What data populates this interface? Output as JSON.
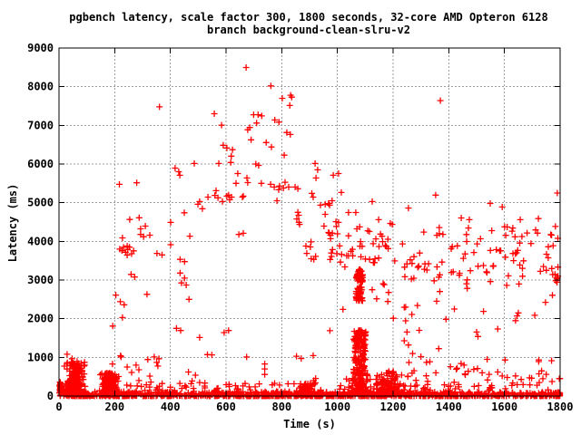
{
  "chart_data": {
    "type": "scatter",
    "title": "pgbench latency, scale factor 300, 1800 seconds, 32-core AMD Opteron 6128",
    "subtitle": "branch background-clean-slru-v2",
    "xlabel": "Time (s)",
    "ylabel": "Latency (ms)",
    "xlim": [
      0,
      1800
    ],
    "ylim": [
      0,
      9000
    ],
    "xticks": [
      0,
      200,
      400,
      600,
      800,
      1000,
      1200,
      1400,
      1600,
      1800
    ],
    "yticks": [
      0,
      1000,
      2000,
      3000,
      4000,
      5000,
      6000,
      7000,
      8000,
      9000
    ],
    "xtick_labels": [
      "0",
      "200",
      "400",
      "600",
      "800",
      "1000",
      "1200",
      "1400",
      "1600",
      "1800"
    ],
    "ytick_labels": [
      "0",
      "1000",
      "2000",
      "3000",
      "4000",
      "5000",
      "6000",
      "7000",
      "8000",
      "9000"
    ],
    "grid": true,
    "legend_position": "none",
    "marker": "+",
    "marker_color": "#ff0000",
    "grid_color": "#9e9e9e",
    "border_color": "#000000",
    "background": "#ffffff",
    "points": [
      [
        672,
        8495
      ],
      [
        761,
        8020
      ],
      [
        832,
        7780
      ],
      [
        836,
        7730
      ],
      [
        829,
        7515
      ],
      [
        802,
        7700
      ],
      [
        558,
        7300
      ],
      [
        699,
        7275
      ],
      [
        715,
        7275
      ],
      [
        728,
        7245
      ],
      [
        710,
        7060
      ],
      [
        584,
        7005
      ],
      [
        685,
        6945
      ],
      [
        775,
        7140
      ],
      [
        790,
        7085
      ],
      [
        361,
        7480
      ],
      [
        1370,
        7640
      ],
      [
        678,
        6885
      ],
      [
        690,
        6625
      ],
      [
        744,
        6555
      ],
      [
        763,
        6440
      ],
      [
        818,
        6815
      ],
      [
        831,
        6765
      ],
      [
        590,
        6485
      ],
      [
        603,
        6415
      ],
      [
        623,
        6370
      ],
      [
        619,
        6205
      ],
      [
        574,
        6015
      ],
      [
        617,
        6040
      ],
      [
        809,
        6230
      ],
      [
        920,
        6015
      ],
      [
        707,
        6000
      ],
      [
        717,
        5965
      ],
      [
        486,
        6015
      ],
      [
        417,
        5895
      ],
      [
        430,
        5800
      ],
      [
        434,
        5710
      ],
      [
        929,
        5850
      ],
      [
        923,
        5640
      ],
      [
        985,
        5710
      ],
      [
        1004,
        5755
      ],
      [
        642,
        5755
      ],
      [
        675,
        5640
      ],
      [
        678,
        5520
      ],
      [
        636,
        5500
      ],
      [
        727,
        5500
      ],
      [
        760,
        5475
      ],
      [
        792,
        5430
      ],
      [
        812,
        5530
      ],
      [
        848,
        5405
      ],
      [
        858,
        5360
      ],
      [
        908,
        5240
      ],
      [
        564,
        5310
      ],
      [
        560,
        5190
      ],
      [
        279,
        5515
      ],
      [
        1790,
        5250
      ],
      [
        773,
        5405
      ],
      [
        789,
        5335
      ],
      [
        806,
        5380
      ],
      [
        825,
        5405
      ],
      [
        603,
        5170
      ],
      [
        613,
        5075
      ],
      [
        659,
        5145
      ],
      [
        571,
        5125
      ],
      [
        587,
        5030
      ],
      [
        783,
        5050
      ],
      [
        913,
        5145
      ],
      [
        981,
        5050
      ],
      [
        1014,
        5265
      ],
      [
        1125,
        5030
      ],
      [
        535,
        5145
      ],
      [
        505,
        5030
      ],
      [
        515,
        4845
      ],
      [
        499,
        4960
      ],
      [
        609,
        5195
      ],
      [
        620,
        5145
      ],
      [
        662,
        5170
      ],
      [
        217,
        5475
      ],
      [
        1353,
        5195
      ],
      [
        939,
        4935
      ],
      [
        956,
        4960
      ],
      [
        968,
        4980
      ],
      [
        972,
        4935
      ],
      [
        858,
        4750
      ],
      [
        861,
        4675
      ],
      [
        854,
        4580
      ],
      [
        862,
        4490
      ],
      [
        864,
        4440
      ],
      [
        956,
        4700
      ],
      [
        952,
        4395
      ],
      [
        968,
        4230
      ],
      [
        975,
        4160
      ],
      [
        995,
        4510
      ],
      [
        1004,
        4490
      ],
      [
        254,
        4565
      ],
      [
        288,
        4610
      ],
      [
        401,
        4490
      ],
      [
        450,
        4740
      ],
      [
        1070,
        4325
      ],
      [
        1109,
        4275
      ],
      [
        1115,
        4255
      ],
      [
        1148,
        4560
      ],
      [
        1190,
        4465
      ],
      [
        1197,
        4440
      ],
      [
        1592,
        4890
      ],
      [
        1657,
        4560
      ],
      [
        1722,
        4590
      ],
      [
        1445,
        4605
      ],
      [
        1474,
        4560
      ],
      [
        1040,
        4745
      ],
      [
        1066,
        4745
      ],
      [
        1255,
        4860
      ],
      [
        1630,
        4345
      ],
      [
        1766,
        4175
      ],
      [
        1783,
        4385
      ],
      [
        1549,
        4980
      ],
      [
        228,
        4090
      ],
      [
        293,
        4325
      ],
      [
        310,
        4395
      ],
      [
        293,
        4180
      ],
      [
        304,
        4120
      ],
      [
        326,
        4160
      ],
      [
        245,
        3880
      ],
      [
        218,
        3800
      ],
      [
        226,
        3760
      ],
      [
        232,
        3845
      ],
      [
        239,
        3720
      ],
      [
        247,
        3790
      ],
      [
        253,
        3850
      ],
      [
        261,
        3680
      ],
      [
        268,
        3755
      ],
      [
        352,
        3690
      ],
      [
        370,
        3650
      ],
      [
        245,
        3645
      ],
      [
        401,
        3915
      ],
      [
        470,
        4135
      ],
      [
        646,
        4180
      ],
      [
        662,
        4210
      ],
      [
        259,
        3145
      ],
      [
        272,
        3080
      ],
      [
        435,
        3535
      ],
      [
        451,
        3475
      ],
      [
        435,
        3180
      ],
      [
        451,
        3050
      ],
      [
        440,
        2925
      ],
      [
        457,
        2870
      ],
      [
        467,
        2500
      ],
      [
        316,
        2630
      ],
      [
        887,
        3880
      ],
      [
        903,
        3855
      ],
      [
        890,
        3690
      ],
      [
        906,
        3550
      ],
      [
        1135,
        3550
      ],
      [
        1148,
        3570
      ],
      [
        1027,
        3340
      ],
      [
        1015,
        3660
      ],
      [
        1040,
        3630
      ],
      [
        1020,
        2240
      ],
      [
        1125,
        2750
      ],
      [
        1164,
        2905
      ],
      [
        1168,
        2880
      ],
      [
        1184,
        2680
      ],
      [
        1141,
        2515
      ],
      [
        1181,
        2445
      ],
      [
        204,
        2610
      ],
      [
        220,
        2440
      ],
      [
        234,
        2360
      ],
      [
        193,
        1810
      ],
      [
        228,
        2030
      ],
      [
        422,
        1750
      ],
      [
        437,
        1695
      ],
      [
        505,
        1515
      ],
      [
        533,
        1070
      ],
      [
        549,
        1065
      ],
      [
        342,
        1010
      ],
      [
        359,
        965
      ],
      [
        223,
        1010
      ],
      [
        593,
        1640
      ],
      [
        609,
        1695
      ],
      [
        674,
        1010
      ],
      [
        853,
        1030
      ],
      [
        870,
        970
      ],
      [
        913,
        1045
      ],
      [
        973,
        1690
      ],
      [
        1201,
        2010
      ],
      [
        1250,
        1655
      ],
      [
        1364,
        1225
      ],
      [
        1500,
        1655
      ],
      [
        1505,
        1540
      ],
      [
        1576,
        1735
      ],
      [
        221,
        1042
      ],
      [
        192,
        830
      ],
      [
        1245,
        2300
      ],
      [
        1420,
        2250
      ],
      [
        1650,
        2150
      ],
      [
        245,
        750
      ],
      [
        261,
        610
      ],
      [
        277,
        800
      ],
      [
        287,
        680
      ],
      [
        287,
        400
      ],
      [
        319,
        945
      ],
      [
        351,
        870
      ],
      [
        355,
        775
      ],
      [
        326,
        515
      ],
      [
        330,
        360
      ],
      [
        739,
        830
      ],
      [
        739,
        700
      ],
      [
        739,
        558
      ],
      [
        465,
        620
      ],
      [
        478,
        390
      ],
      [
        490,
        540
      ],
      [
        457,
        230
      ],
      [
        505,
        350
      ],
      [
        915,
        400
      ],
      [
        922,
        455
      ],
      [
        29,
        1080
      ],
      [
        47,
        965
      ],
      [
        65,
        895
      ],
      [
        92,
        800
      ],
      [
        1245,
        1945
      ],
      [
        1294,
        1700
      ],
      [
        1390,
        1985
      ],
      [
        1640,
        1950
      ],
      [
        1240,
        1430
      ],
      [
        1255,
        1320
      ],
      [
        1270,
        1100
      ],
      [
        1300,
        1020
      ],
      [
        1320,
        870
      ],
      [
        1406,
        760
      ],
      [
        1430,
        720
      ],
      [
        1455,
        800
      ],
      [
        1470,
        640
      ],
      [
        1490,
        690
      ],
      [
        1520,
        600
      ],
      [
        1545,
        560
      ],
      [
        1576,
        620
      ],
      [
        1610,
        480
      ],
      [
        1640,
        520
      ],
      [
        1660,
        430
      ],
      [
        1690,
        470
      ],
      [
        1738,
        447
      ],
      [
        1771,
        376
      ],
      [
        1797,
        447
      ],
      [
        1725,
        350
      ],
      [
        1750,
        560
      ]
    ],
    "dense_clusters": [
      {
        "name": "baseline-band",
        "t": [
          0,
          1800
        ],
        "lat": [
          0,
          115
        ],
        "n": 1000,
        "dist": "band"
      },
      {
        "name": "baseline-spikes",
        "t": [
          215,
          1800
        ],
        "lat": [
          110,
          340
        ],
        "n": 120,
        "dist": "uniform"
      },
      {
        "name": "startup-column",
        "t": [
          0,
          10
        ],
        "lat": [
          30,
          400
        ],
        "n": 25,
        "dist": "blob"
      },
      {
        "name": "warmup-cluster",
        "t": [
          12,
          105
        ],
        "lat": [
          40,
          880
        ],
        "n": 260,
        "dist": "bottomblob"
      },
      {
        "name": "second-cluster",
        "t": [
          138,
          222
        ],
        "lat": [
          25,
          600
        ],
        "n": 300,
        "dist": "bottomblob"
      },
      {
        "name": "cluster-860s",
        "t": [
          848,
          918
        ],
        "lat": [
          15,
          330
        ],
        "n": 50,
        "dist": "bottomblob"
      },
      {
        "name": "column-3000",
        "t": [
          1067,
          1091
        ],
        "lat": [
          2940,
          3290
        ],
        "n": 42,
        "dist": "column"
      },
      {
        "name": "column-2600",
        "t": [
          1067,
          1091
        ],
        "lat": [
          2450,
          2820
        ],
        "n": 38,
        "dist": "column"
      },
      {
        "name": "column-low",
        "t": [
          1058,
          1102
        ],
        "lat": [
          640,
          1700
        ],
        "n": 120,
        "dist": "column"
      },
      {
        "name": "column-base",
        "t": [
          1025,
          1135
        ],
        "lat": [
          60,
          640
        ],
        "n": 95,
        "dist": "bottomblob"
      },
      {
        "name": "post-column-cluster",
        "t": [
          1100,
          1265
        ],
        "lat": [
          40,
          640
        ],
        "n": 140,
        "dist": "bottomblob"
      },
      {
        "name": "mid-band",
        "t": [
          905,
          1210
        ],
        "lat": [
          3350,
          4450
        ],
        "n": 40,
        "dist": "uniform"
      },
      {
        "name": "right-band",
        "t": [
          1215,
          1800
        ],
        "lat": [
          2980,
          4380
        ],
        "n": 88,
        "dist": "uniform"
      },
      {
        "name": "right-mid-sparse",
        "t": [
          1215,
          1800
        ],
        "lat": [
          2060,
          2960
        ],
        "n": 15,
        "dist": "uniform"
      },
      {
        "name": "right-low-sparse",
        "t": [
          1255,
          1800
        ],
        "lat": [
          330,
          950
        ],
        "n": 26,
        "dist": "uniform"
      },
      {
        "name": "right-edge-cluster",
        "t": [
          1775,
          1800
        ],
        "lat": [
          2900,
          3200
        ],
        "n": 9,
        "dist": "blob"
      }
    ]
  }
}
